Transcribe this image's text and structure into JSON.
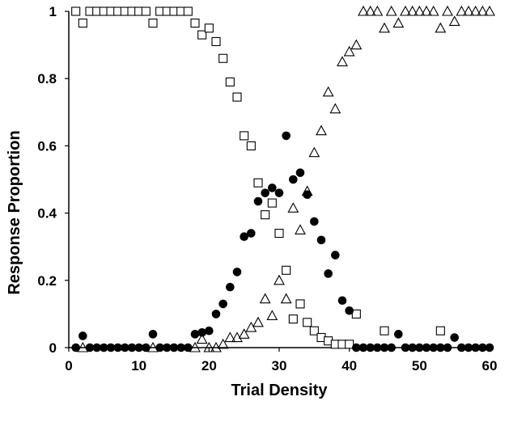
{
  "chart_data": {
    "type": "scatter",
    "title": "",
    "xlabel": "Trial Density",
    "ylabel": "Response Proportion",
    "xlim": [
      0,
      60
    ],
    "ylim": [
      0,
      1
    ],
    "xticks": [
      0,
      10,
      20,
      30,
      40,
      50,
      60
    ],
    "yticks": [
      0,
      0.2,
      0.4,
      0.6,
      0.8,
      1
    ],
    "ytick_labels": [
      "0",
      "0.2",
      "0.4",
      "0.6",
      "0.8",
      "1"
    ],
    "grid": false,
    "legend": "none",
    "series": [
      {
        "marker": "open-square",
        "color": "#000000",
        "points": [
          [
            1,
            1
          ],
          [
            2,
            0.965
          ],
          [
            3,
            1
          ],
          [
            4,
            1
          ],
          [
            5,
            1
          ],
          [
            6,
            1
          ],
          [
            7,
            1
          ],
          [
            8,
            1
          ],
          [
            9,
            1
          ],
          [
            10,
            1
          ],
          [
            11,
            1
          ],
          [
            12,
            0.965
          ],
          [
            13,
            1
          ],
          [
            14,
            1
          ],
          [
            15,
            1
          ],
          [
            16,
            1
          ],
          [
            17,
            1
          ],
          [
            18,
            0.965
          ],
          [
            19,
            0.93
          ],
          [
            20,
            0.95
          ],
          [
            21,
            0.91
          ],
          [
            22,
            0.86
          ],
          [
            23,
            0.79
          ],
          [
            24,
            0.745
          ],
          [
            25,
            0.63
          ],
          [
            26,
            0.6
          ],
          [
            27,
            0.49
          ],
          [
            28,
            0.395
          ],
          [
            29,
            0.43
          ],
          [
            30,
            0.34
          ],
          [
            31,
            0.23
          ],
          [
            32,
            0.085
          ],
          [
            33,
            0.13
          ],
          [
            34,
            0.075
          ],
          [
            35,
            0.05
          ],
          [
            36,
            0.03
          ],
          [
            37,
            0.02
          ],
          [
            38,
            0.01
          ],
          [
            39,
            0.01
          ],
          [
            40,
            0.01
          ],
          [
            41,
            0.1
          ],
          [
            45,
            0.05
          ],
          [
            53,
            0.05
          ]
        ]
      },
      {
        "marker": "open-triangle",
        "color": "#000000",
        "points": [
          [
            2,
            0
          ],
          [
            12,
            0
          ],
          [
            18,
            0
          ],
          [
            19,
            0.025
          ],
          [
            20,
            0
          ],
          [
            21,
            0
          ],
          [
            22,
            0.01
          ],
          [
            23,
            0.03
          ],
          [
            24,
            0.03
          ],
          [
            25,
            0.04
          ],
          [
            26,
            0.06
          ],
          [
            27,
            0.075
          ],
          [
            28,
            0.145
          ],
          [
            29,
            0.095
          ],
          [
            30,
            0.2
          ],
          [
            31,
            0.145
          ],
          [
            32,
            0.415
          ],
          [
            33,
            0.35
          ],
          [
            34,
            0.465
          ],
          [
            35,
            0.58
          ],
          [
            36,
            0.645
          ],
          [
            37,
            0.76
          ],
          [
            38,
            0.71
          ],
          [
            39,
            0.85
          ],
          [
            40,
            0.88
          ],
          [
            41,
            0.9
          ],
          [
            42,
            1
          ],
          [
            43,
            1
          ],
          [
            44,
            1
          ],
          [
            45,
            0.95
          ],
          [
            46,
            1
          ],
          [
            47,
            0.965
          ],
          [
            48,
            1
          ],
          [
            49,
            1
          ],
          [
            50,
            1
          ],
          [
            51,
            1
          ],
          [
            52,
            1
          ],
          [
            53,
            0.95
          ],
          [
            54,
            1
          ],
          [
            55,
            0.97
          ],
          [
            56,
            1
          ],
          [
            57,
            1
          ],
          [
            58,
            1
          ],
          [
            59,
            1
          ],
          [
            60,
            1
          ]
        ]
      },
      {
        "marker": "filled-circle",
        "color": "#000000",
        "points": [
          [
            1,
            0
          ],
          [
            2,
            0.035
          ],
          [
            3,
            0
          ],
          [
            4,
            0
          ],
          [
            5,
            0
          ],
          [
            6,
            0
          ],
          [
            7,
            0
          ],
          [
            8,
            0
          ],
          [
            9,
            0
          ],
          [
            10,
            0
          ],
          [
            11,
            0
          ],
          [
            12,
            0.04
          ],
          [
            13,
            0
          ],
          [
            14,
            0
          ],
          [
            15,
            0
          ],
          [
            16,
            0
          ],
          [
            17,
            0
          ],
          [
            18,
            0.04
          ],
          [
            19,
            0.045
          ],
          [
            20,
            0.05
          ],
          [
            21,
            0.1
          ],
          [
            22,
            0.13
          ],
          [
            23,
            0.18
          ],
          [
            24,
            0.225
          ],
          [
            25,
            0.33
          ],
          [
            26,
            0.34
          ],
          [
            27,
            0.435
          ],
          [
            28,
            0.46
          ],
          [
            29,
            0.475
          ],
          [
            30,
            0.46
          ],
          [
            31,
            0.63
          ],
          [
            32,
            0.5
          ],
          [
            33,
            0.52
          ],
          [
            34,
            0.455
          ],
          [
            35,
            0.375
          ],
          [
            36,
            0.32
          ],
          [
            37,
            0.22
          ],
          [
            38,
            0.275
          ],
          [
            39,
            0.14
          ],
          [
            40,
            0.11
          ],
          [
            41,
            0
          ],
          [
            42,
            0
          ],
          [
            43,
            0
          ],
          [
            44,
            0
          ],
          [
            45,
            0
          ],
          [
            46,
            0
          ],
          [
            47,
            0.04
          ],
          [
            48,
            0
          ],
          [
            49,
            0
          ],
          [
            50,
            0
          ],
          [
            51,
            0
          ],
          [
            52,
            0
          ],
          [
            53,
            0
          ],
          [
            54,
            0
          ],
          [
            55,
            0.03
          ],
          [
            56,
            0
          ],
          [
            57,
            0
          ],
          [
            58,
            0
          ],
          [
            59,
            0
          ],
          [
            60,
            0
          ]
        ]
      }
    ]
  }
}
